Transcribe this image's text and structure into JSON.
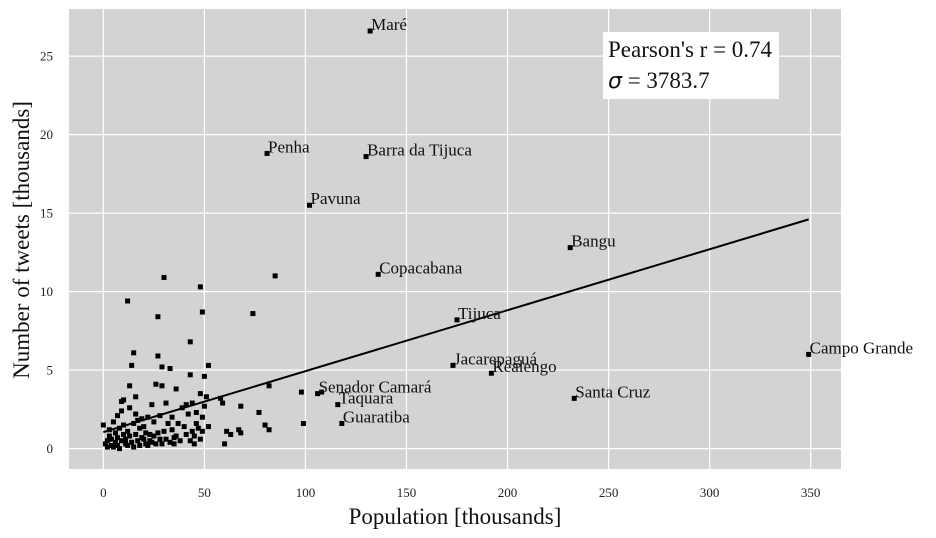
{
  "chart_data": {
    "type": "scatter",
    "xlabel": "Population [thousands]",
    "ylabel": "Number of tweets [thousands]",
    "xlim": [
      -17,
      365
    ],
    "ylim": [
      -1.3,
      28
    ],
    "xticks": [
      0,
      50,
      100,
      150,
      200,
      250,
      300,
      350
    ],
    "yticks": [
      0,
      5,
      10,
      15,
      20,
      25
    ],
    "grid": true,
    "background": "#d3d3d3",
    "marker_color": "#000000",
    "annotation": {
      "pearson": "Pearson's r = 0.74",
      "sigma_symbol": "σ",
      "sigma_value": " = 3783.7"
    },
    "regression_line": {
      "x": [
        0,
        349
      ],
      "y": [
        1.05,
        14.6
      ]
    },
    "labeled_points": [
      {
        "label": "Maré",
        "x": 132,
        "y": 26.6
      },
      {
        "label": "Penha",
        "x": 81,
        "y": 18.8
      },
      {
        "label": "Barra da Tijuca",
        "x": 130,
        "y": 18.6
      },
      {
        "label": "Pavuna",
        "x": 102,
        "y": 15.5
      },
      {
        "label": "Bangu",
        "x": 231,
        "y": 12.8
      },
      {
        "label": "Copacabana",
        "x": 136,
        "y": 11.1
      },
      {
        "label": "Tijuca",
        "x": 175,
        "y": 8.2
      },
      {
        "label": "Campo Grande",
        "x": 349,
        "y": 6.0
      },
      {
        "label": "Jacarepaguá",
        "x": 173,
        "y": 5.3
      },
      {
        "label": "Realengo",
        "x": 192,
        "y": 4.8
      },
      {
        "label": "Senador Camará",
        "x": 106,
        "y": 3.5
      },
      {
        "label": "Santa Cruz",
        "x": 233,
        "y": 3.2
      },
      {
        "label": "Taquara",
        "x": 116,
        "y": 2.8
      },
      {
        "label": "Guaratiba",
        "x": 118,
        "y": 1.6
      }
    ],
    "points": [
      [
        0,
        1.5
      ],
      [
        1,
        0.3
      ],
      [
        2,
        0.5
      ],
      [
        2,
        0.1
      ],
      [
        3,
        1.2
      ],
      [
        3,
        0.8
      ],
      [
        4,
        0.2
      ],
      [
        4,
        0.6
      ],
      [
        5,
        0.1
      ],
      [
        5,
        1.7
      ],
      [
        6,
        0.4
      ],
      [
        6,
        1.0
      ],
      [
        7,
        0.2
      ],
      [
        7,
        2.1
      ],
      [
        7,
        0.7
      ],
      [
        8,
        1.3
      ],
      [
        8,
        0.0
      ],
      [
        9,
        2.4
      ],
      [
        9,
        3.0
      ],
      [
        9,
        0.5
      ],
      [
        10,
        3.1
      ],
      [
        10,
        1.5
      ],
      [
        10,
        0.9
      ],
      [
        11,
        0.3
      ],
      [
        11,
        0.6
      ],
      [
        12,
        1.1
      ],
      [
        12,
        0.2
      ],
      [
        12,
        9.4
      ],
      [
        13,
        0.8
      ],
      [
        13,
        4.0
      ],
      [
        13,
        2.6
      ],
      [
        14,
        5.3
      ],
      [
        14,
        0.4
      ],
      [
        15,
        6.1
      ],
      [
        15,
        1.6
      ],
      [
        15,
        0.1
      ],
      [
        16,
        0.9
      ],
      [
        16,
        2.2
      ],
      [
        16,
        3.3
      ],
      [
        17,
        1.8
      ],
      [
        17,
        0.5
      ],
      [
        18,
        0.2
      ],
      [
        18,
        1.3
      ],
      [
        19,
        1.9
      ],
      [
        19,
        0.7
      ],
      [
        20,
        0.6
      ],
      [
        20,
        1.4
      ],
      [
        21,
        0.3
      ],
      [
        21,
        1.0
      ],
      [
        22,
        0.2
      ],
      [
        22,
        2.0
      ],
      [
        23,
        0.5
      ],
      [
        23,
        0.9
      ],
      [
        24,
        2.8
      ],
      [
        24,
        0.4
      ],
      [
        25,
        1.7
      ],
      [
        25,
        0.8
      ],
      [
        26,
        0.3
      ],
      [
        26,
        4.1
      ],
      [
        27,
        5.9
      ],
      [
        27,
        8.4
      ],
      [
        27,
        1.0
      ],
      [
        28,
        0.6
      ],
      [
        28,
        2.1
      ],
      [
        29,
        4.0
      ],
      [
        29,
        5.2
      ],
      [
        29,
        0.3
      ],
      [
        30,
        10.9
      ],
      [
        30,
        1.1
      ],
      [
        31,
        0.6
      ],
      [
        31,
        2.9
      ],
      [
        32,
        1.6
      ],
      [
        33,
        5.1
      ],
      [
        33,
        0.4
      ],
      [
        34,
        2.0
      ],
      [
        34,
        1.2
      ],
      [
        35,
        0.7
      ],
      [
        35,
        0.3
      ],
      [
        36,
        3.8
      ],
      [
        36,
        0.8
      ],
      [
        37,
        1.6
      ],
      [
        38,
        0.5
      ],
      [
        39,
        2.6
      ],
      [
        40,
        1.4
      ],
      [
        41,
        0.9
      ],
      [
        41,
        2.8
      ],
      [
        42,
        2.2
      ],
      [
        43,
        0.5
      ],
      [
        43,
        6.8
      ],
      [
        43,
        4.7
      ],
      [
        44,
        1.1
      ],
      [
        44,
        2.9
      ],
      [
        45,
        0.8
      ],
      [
        45,
        0.3
      ],
      [
        46,
        1.6
      ],
      [
        46,
        2.3
      ],
      [
        47,
        1.3
      ],
      [
        48,
        10.3
      ],
      [
        48,
        3.5
      ],
      [
        48,
        0.6
      ],
      [
        49,
        8.7
      ],
      [
        49,
        2.0
      ],
      [
        49,
        1.1
      ],
      [
        50,
        4.6
      ],
      [
        50,
        2.7
      ],
      [
        51,
        3.3
      ],
      [
        52,
        5.3
      ],
      [
        52,
        1.4
      ],
      [
        58,
        3.2
      ],
      [
        59,
        2.9
      ],
      [
        60,
        0.3
      ],
      [
        61,
        1.1
      ],
      [
        63,
        0.9
      ],
      [
        67,
        1.2
      ],
      [
        68,
        2.7
      ],
      [
        68,
        1.0
      ],
      [
        74,
        8.6
      ],
      [
        77,
        2.3
      ],
      [
        80,
        1.5
      ],
      [
        82,
        4.0
      ],
      [
        82,
        1.2
      ],
      [
        85,
        11.0
      ],
      [
        98,
        3.6
      ],
      [
        99,
        1.6
      ],
      [
        108,
        3.6
      ]
    ]
  }
}
